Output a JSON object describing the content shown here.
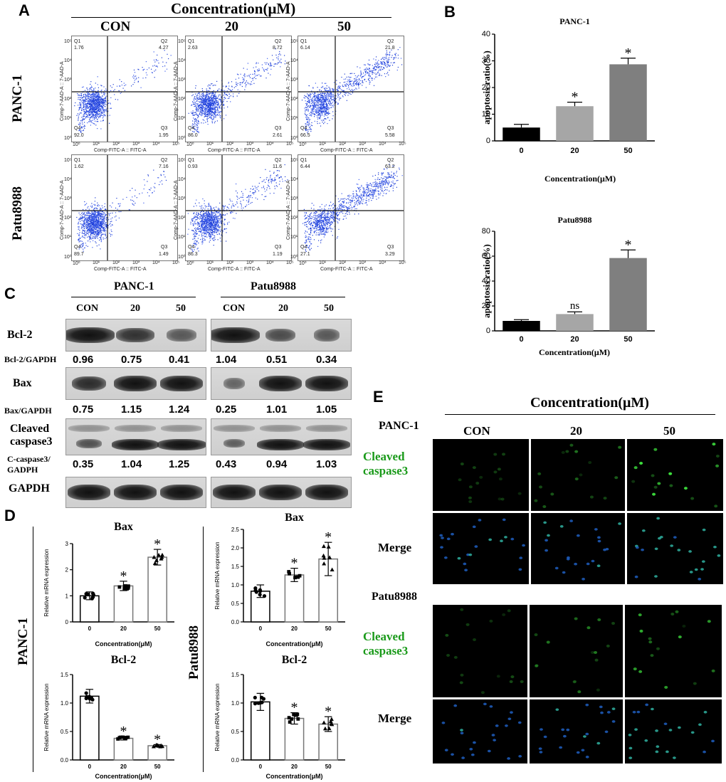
{
  "panel_a": {
    "letter": "A",
    "header": "Concentration(μM)",
    "columns": [
      "CON",
      "20",
      "50"
    ],
    "rows": [
      "PANC-1",
      "Patu8988"
    ],
    "x_axis_label": "Comp-FITC-A :: FITC-A",
    "y_axis_label": "Comp-7-AAD-A :: 7-AAD-A",
    "quadrant_names": [
      "Q1",
      "Q2",
      "Q3",
      "Q4"
    ],
    "plots": [
      {
        "q1": "1.76",
        "q2": "4.27",
        "q3": "1.95",
        "q4": "92.0"
      },
      {
        "q1": "2.63",
        "q2": "8.72",
        "q3": "2.61",
        "q4": "86.0"
      },
      {
        "q1": "6.14",
        "q2": "21.8",
        "q3": "5.58",
        "q4": "66.5"
      },
      {
        "q1": "1.62",
        "q2": "7.16",
        "q3": "1.49",
        "q4": "89.7"
      },
      {
        "q1": "0.93",
        "q2": "11.6",
        "q3": "1.19",
        "q4": "86.3"
      },
      {
        "q1": "6.44",
        "q2": "63.2",
        "q3": "3.29",
        "q4": "27.1"
      }
    ],
    "tick_labels": [
      "10⁰",
      "10¹",
      "10²",
      "10³",
      "10⁴",
      "10⁵"
    ]
  },
  "panel_b": {
    "letter": "B",
    "xlabel_top": "Concentration(μM)",
    "xlabel_bottom": "Concentration(μM)"
  },
  "chart_data": [
    {
      "type": "bar",
      "title": "PANC-1",
      "categories": [
        "0",
        "20",
        "50"
      ],
      "values": [
        5,
        13,
        28.7
      ],
      "errors": [
        1.2,
        1.5,
        2.3
      ],
      "ylabel": "apoptosis ratio(%)",
      "ylim": [
        0,
        40
      ],
      "yticks": [
        0,
        10,
        20,
        30,
        40
      ],
      "significance": [
        "",
        "*",
        "*"
      ],
      "colors": [
        "#000000",
        "#a6a6a6",
        "#7f7f7f"
      ]
    },
    {
      "type": "bar",
      "title": "Patu8988",
      "categories": [
        "0",
        "20",
        "50"
      ],
      "values": [
        8,
        13.5,
        58.5
      ],
      "errors": [
        1.0,
        1.8,
        6.5
      ],
      "ylabel": "apoptosis ratio(%)",
      "ylim": [
        0,
        80
      ],
      "yticks": [
        0,
        20,
        40,
        60,
        80
      ],
      "significance": [
        "",
        "ns",
        "*"
      ],
      "colors": [
        "#000000",
        "#a6a6a6",
        "#7f7f7f"
      ]
    },
    {
      "type": "bar",
      "title": "Bax",
      "group": "PANC-1",
      "categories": [
        "0",
        "20",
        "50"
      ],
      "values": [
        1.0,
        1.38,
        2.48
      ],
      "errors": [
        0.15,
        0.18,
        0.3
      ],
      "ylabel": "Relative mRNA expression",
      "xlabel": "Concentration(μM)",
      "ylim": [
        0,
        3
      ],
      "yticks": [
        0,
        1,
        2,
        3
      ],
      "significance": [
        "",
        "*",
        "*"
      ]
    },
    {
      "type": "bar",
      "title": "Bax",
      "group": "Patu8988",
      "categories": [
        "0",
        "20",
        "50"
      ],
      "values": [
        0.83,
        1.27,
        1.7
      ],
      "errors": [
        0.17,
        0.18,
        0.45
      ],
      "ylabel": "Relative mRNA expression",
      "xlabel": "Concentration(μM)",
      "ylim": [
        0,
        2.5
      ],
      "yticks": [
        0.0,
        0.5,
        1.0,
        1.5,
        2.0,
        2.5
      ],
      "significance": [
        "",
        "*",
        "*"
      ]
    },
    {
      "type": "bar",
      "title": "Bcl-2",
      "group": "PANC-1",
      "categories": [
        "0",
        "20",
        "50"
      ],
      "values": [
        1.12,
        0.38,
        0.25
      ],
      "errors": [
        0.12,
        0.03,
        0.02
      ],
      "ylabel": "Relative mRNA expression",
      "xlabel": "Concentration(μM)",
      "ylim": [
        0,
        1.5
      ],
      "yticks": [
        0.0,
        0.5,
        1.0,
        1.5
      ],
      "significance": [
        "",
        "*",
        "*"
      ]
    },
    {
      "type": "bar",
      "title": "Bcl-2",
      "group": "Patu8988",
      "categories": [
        "0",
        "20",
        "50"
      ],
      "values": [
        1.02,
        0.73,
        0.63
      ],
      "errors": [
        0.15,
        0.1,
        0.13
      ],
      "ylabel": "Relative mRNA expression",
      "xlabel": "Concentration(μM)",
      "ylim": [
        0,
        1.5
      ],
      "yticks": [
        0.0,
        0.5,
        1.0,
        1.5
      ],
      "significance": [
        "",
        "*",
        "*"
      ]
    }
  ],
  "panel_c": {
    "letter": "C",
    "groups": [
      "PANC-1",
      "Patu8988"
    ],
    "lanes": [
      "CON",
      "20",
      "50"
    ],
    "rows": [
      {
        "label": "Bcl-2",
        "ratio_label": "Bcl-2/GAPDH",
        "ratios": [
          "0.96",
          "0.75",
          "0.41",
          "1.04",
          "0.51",
          "0.34"
        ]
      },
      {
        "label": "Bax",
        "ratio_label": "Bax/GAPDH",
        "ratios": [
          "0.75",
          "1.15",
          "1.24",
          "0.25",
          "1.01",
          "1.05"
        ]
      },
      {
        "label_line1": "Cleaved",
        "label_line2": "caspase3",
        "ratio_label_line1": "C-caspase3/",
        "ratio_label_line2": "GADPH",
        "ratios": [
          "0.35",
          "1.04",
          "1.25",
          "0.43",
          "0.94",
          "1.03"
        ]
      },
      {
        "label": "GAPDH"
      }
    ]
  },
  "panel_d": {
    "letter": "D",
    "group_labels": [
      "PANC-1",
      "Patu8988"
    ]
  },
  "panel_e": {
    "letter": "E",
    "header": "Concentration(μM)",
    "columns": [
      "CON",
      "20",
      "50"
    ],
    "groups": [
      "PANC-1",
      "Patu8988"
    ],
    "row_label_cleaved_1": "Cleaved",
    "row_label_cleaved_2": "caspase3",
    "row_label_merge": "Merge"
  }
}
